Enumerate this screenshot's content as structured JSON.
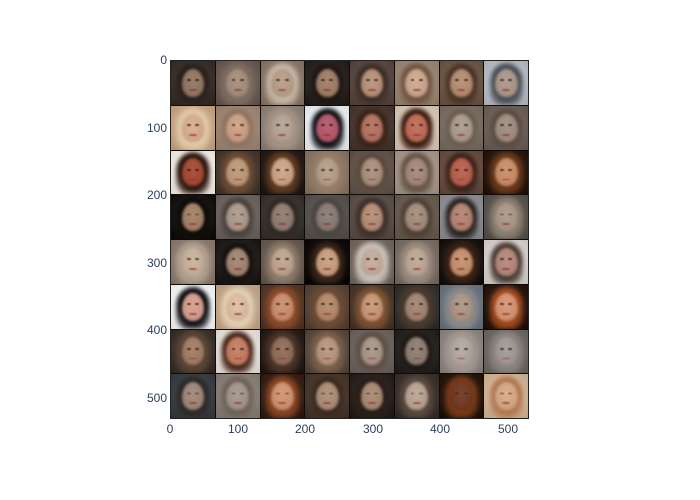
{
  "figure": {
    "image_alt": "8x8 grid of generated face samples",
    "grid_rows": 8,
    "grid_cols": 8,
    "tiles": [
      {
        "bg": "#3b332e",
        "hair": "#2a211b",
        "skin": "#8f7461"
      },
      {
        "bg": "#6b5d55",
        "hair": "#7e6c60",
        "skin": "#a08a7a"
      },
      {
        "bg": "#8a7868",
        "hair": "#c4b5a6",
        "skin": "#b39a84"
      },
      {
        "bg": "#2c2522",
        "hair": "#1e1714",
        "skin": "#9b7b66"
      },
      {
        "bg": "#5a4c44",
        "hair": "#3d2f27",
        "skin": "#b38e76"
      },
      {
        "bg": "#9a8774",
        "hair": "#6f5543",
        "skin": "#c7a48b"
      },
      {
        "bg": "#6e5a4b",
        "hair": "#4a3426",
        "skin": "#b08a6e"
      },
      {
        "bg": "#b7bcc4",
        "hair": "#4a4e56",
        "skin": "#a69488"
      },
      {
        "bg": "#c8a585",
        "hair": "#e0c9a5",
        "skin": "#d1a88b"
      },
      {
        "bg": "#9e8776",
        "hair": "#8f7361",
        "skin": "#c69d82"
      },
      {
        "bg": "#8f8379",
        "hair": "#a39383",
        "skin": "#b09f92"
      },
      {
        "bg": "#e9edf2",
        "hair": "#101214",
        "skin": "#b0576a"
      },
      {
        "bg": "#4b3b33",
        "hair": "#3a2419",
        "skin": "#b07060"
      },
      {
        "bg": "#d6c6b6",
        "hair": "#3b1d12",
        "skin": "#b86a55"
      },
      {
        "bg": "#7a6f66",
        "hair": "#6b5d52",
        "skin": "#a7978a"
      },
      {
        "bg": "#6f625a",
        "hair": "#5a4c43",
        "skin": "#9d8a7d"
      },
      {
        "bg": "#f2ece6",
        "hair": "#2a1710",
        "skin": "#a04a34"
      },
      {
        "bg": "#4a3b31",
        "hair": "#6b4a33",
        "skin": "#b99478"
      },
      {
        "bg": "#2b201a",
        "hair": "#5e3a22",
        "skin": "#c7a084"
      },
      {
        "bg": "#8a7664",
        "hair": "#947c68",
        "skin": "#b19a86"
      },
      {
        "bg": "#65574d",
        "hair": "#5a4a3f",
        "skin": "#a58c78"
      },
      {
        "bg": "#a8978a",
        "hair": "#665547",
        "skin": "#9f8676"
      },
      {
        "bg": "#6a5146",
        "hair": "#3d241a",
        "skin": "#b35e4e"
      },
      {
        "bg": "#2e1c12",
        "hair": "#6a3a1c",
        "skin": "#c48a66"
      },
      {
        "bg": "#1a1613",
        "hair": "#0f0c0a",
        "skin": "#a07e66"
      },
      {
        "bg": "#6e6660",
        "hair": "#4a423d",
        "skin": "#a89688"
      },
      {
        "bg": "#3c3631",
        "hair": "#2f2824",
        "skin": "#8d7a6d"
      },
      {
        "bg": "#5a5550",
        "hair": "#4b4540",
        "skin": "#857a72"
      },
      {
        "bg": "#5e534c",
        "hair": "#3e302a",
        "skin": "#b08b74"
      },
      {
        "bg": "#6b5e53",
        "hair": "#4f4036",
        "skin": "#9e8a7a"
      },
      {
        "bg": "#8f8f95",
        "hair": "#2a2422",
        "skin": "#b08070"
      },
      {
        "bg": "#5c5650",
        "hair": "#8b7e72",
        "skin": "#a69484"
      },
      {
        "bg": "#8c7d70",
        "hair": "#b0a090",
        "skin": "#c4ad98"
      },
      {
        "bg": "#24201e",
        "hair": "#15110f",
        "skin": "#a08070"
      },
      {
        "bg": "#6a5c52",
        "hair": "#8c7a6a",
        "skin": "#b9a08a"
      },
      {
        "bg": "#140f0c",
        "hair": "#3a2418",
        "skin": "#c49a7c"
      },
      {
        "bg": "#756a62",
        "hair": "#c8c0b8",
        "skin": "#c0a898"
      },
      {
        "bg": "#7a6e66",
        "hair": "#9a8a7e",
        "skin": "#b8a292"
      },
      {
        "bg": "#1e1814",
        "hair": "#3a2214",
        "skin": "#c08c6c"
      },
      {
        "bg": "#d6d0cc",
        "hair": "#4a3c34",
        "skin": "#b08478"
      },
      {
        "bg": "#f4f4f6",
        "hair": "#101014",
        "skin": "#d09a8a"
      },
      {
        "bg": "#c2a68c",
        "hair": "#e2cfb2",
        "skin": "#d8b89c"
      },
      {
        "bg": "#5a3a28",
        "hair": "#8a4a2a",
        "skin": "#c48a6a"
      },
      {
        "bg": "#5c4638",
        "hair": "#6a4a36",
        "skin": "#b08668"
      },
      {
        "bg": "#4c3a2e",
        "hair": "#7a5232",
        "skin": "#c29474"
      },
      {
        "bg": "#3a342f",
        "hair": "#4a3a2e",
        "skin": "#9e8270"
      },
      {
        "bg": "#6c7680",
        "hair": "#8a8a88",
        "skin": "#a89282"
      },
      {
        "bg": "#2c1a12",
        "hair": "#a04a20",
        "skin": "#d09070"
      },
      {
        "bg": "#3e342e",
        "hair": "#5a4436",
        "skin": "#9e7a64"
      },
      {
        "bg": "#e6e0dc",
        "hair": "#4a2a1c",
        "skin": "#c07a60"
      },
      {
        "bg": "#2c221c",
        "hair": "#4a3428",
        "skin": "#8e6a58"
      },
      {
        "bg": "#5c4c40",
        "hair": "#7a604c",
        "skin": "#b2927a"
      },
      {
        "bg": "#6e6660",
        "hair": "#5e5048",
        "skin": "#a49284"
      },
      {
        "bg": "#2a2622",
        "hair": "#201a16",
        "skin": "#8a7a70"
      },
      {
        "bg": "#8e8680",
        "hair": "#a09890",
        "skin": "#aea49c"
      },
      {
        "bg": "#6e6a66",
        "hair": "#8a8480",
        "skin": "#9e9690"
      },
      {
        "bg": "#3c4248",
        "hair": "#2e2a28",
        "skin": "#9a8476"
      },
      {
        "bg": "#8a8078",
        "hair": "#6c625a",
        "skin": "#a09286"
      },
      {
        "bg": "#3a2418",
        "hair": "#8a4422",
        "skin": "#c8906e"
      },
      {
        "bg": "#4c3a30",
        "hair": "#3a2a20",
        "skin": "#a88a74"
      },
      {
        "bg": "#2c2420",
        "hair": "#2a1e18",
        "skin": "#a48670"
      },
      {
        "bg": "#3e3430",
        "hair": "#5a4840",
        "skin": "#b4a08e"
      },
      {
        "bg": "#2a1a10",
        "hair": "#7a3a18",
        "skin": "#6e3a24"
      },
      {
        "bg": "#d0b498",
        "hair": "#b07850",
        "skin": "#d0a484"
      }
    ]
  },
  "axes": {
    "y_ticks": [
      "0",
      "100",
      "200",
      "300",
      "400",
      "500"
    ],
    "x_ticks": [
      "0",
      "100",
      "200",
      "300",
      "400",
      "500"
    ]
  }
}
